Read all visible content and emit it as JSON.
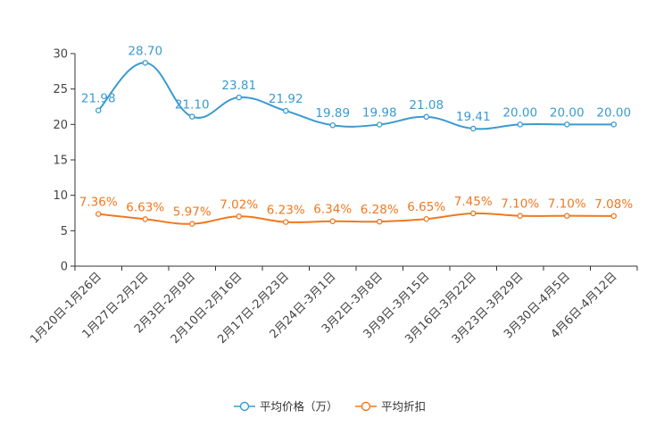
{
  "chart_data": {
    "type": "line",
    "title": "",
    "xlabel": "",
    "ylabel": "",
    "ylim": [
      0,
      30
    ],
    "yticks": [
      0,
      5,
      10,
      15,
      20,
      25,
      30
    ],
    "grid": false,
    "legend_position": "bottom-center",
    "categories": [
      "1月20日-1月26日",
      "1月27日-2月2日",
      "2月3日-2月9日",
      "2月10日-2月16日",
      "2月17日-2月23日",
      "2月24日-3月1日",
      "3月2日-3月8日",
      "3月9日-3月15日",
      "3月16日-3月22日",
      "3月23日-3月29日",
      "3月30日-4月5日",
      "4月6日-4月12日"
    ],
    "series": [
      {
        "name": "平均价格（万）",
        "color": "#3a9bd0",
        "values": [
          21.98,
          28.7,
          21.1,
          23.81,
          21.92,
          19.89,
          19.98,
          21.08,
          19.41,
          20.0,
          20.0,
          20.0
        ],
        "labels": [
          "21.98",
          "28.70",
          "21.10",
          "23.81",
          "21.92",
          "19.89",
          "19.98",
          "21.08",
          "19.41",
          "20.00",
          "20.00",
          "20.00"
        ]
      },
      {
        "name": "平均折扣",
        "color": "#f07820",
        "values": [
          7.36,
          6.63,
          5.97,
          7.02,
          6.23,
          6.34,
          6.28,
          6.65,
          7.45,
          7.1,
          7.1,
          7.08
        ],
        "labels": [
          "7.36%",
          "6.63%",
          "5.97%",
          "7.02%",
          "6.23%",
          "6.34%",
          "6.28%",
          "6.65%",
          "7.45%",
          "7.10%",
          "7.10%",
          "7.08%"
        ]
      }
    ]
  }
}
